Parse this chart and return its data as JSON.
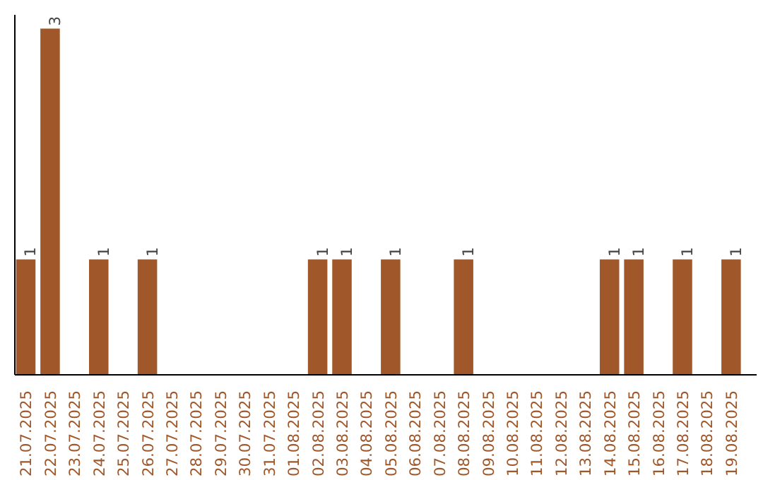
{
  "chart_data": {
    "type": "bar",
    "categories": [
      "21.07.2025",
      "22.07.2025",
      "23.07.2025",
      "24.07.2025",
      "25.07.2025",
      "26.07.2025",
      "27.07.2025",
      "28.07.2025",
      "29.07.2025",
      "30.07.2025",
      "31.07.2025",
      "01.08.2025",
      "02.08.2025",
      "03.08.2025",
      "04.08.2025",
      "05.08.2025",
      "06.08.2025",
      "07.08.2025",
      "08.08.2025",
      "09.08.2025",
      "10.08.2025",
      "11.08.2025",
      "12.08.2025",
      "13.08.2025",
      "14.08.2025",
      "15.08.2025",
      "16.08.2025",
      "17.08.2025",
      "18.08.2025",
      "19.08.2025"
    ],
    "values": [
      1,
      3,
      0,
      1,
      0,
      1,
      0,
      0,
      0,
      0,
      0,
      0,
      1,
      1,
      0,
      1,
      0,
      0,
      1,
      0,
      0,
      0,
      0,
      0,
      1,
      1,
      0,
      1,
      0,
      1
    ],
    "value_labels": [
      "1",
      "3",
      null,
      "1",
      null,
      "1",
      null,
      null,
      null,
      null,
      null,
      null,
      "1",
      "1",
      null,
      "1",
      null,
      null,
      "1",
      null,
      null,
      null,
      null,
      null,
      "1",
      "1",
      null,
      "1",
      null,
      "1"
    ],
    "color": "#a0582a",
    "grid": false
  }
}
